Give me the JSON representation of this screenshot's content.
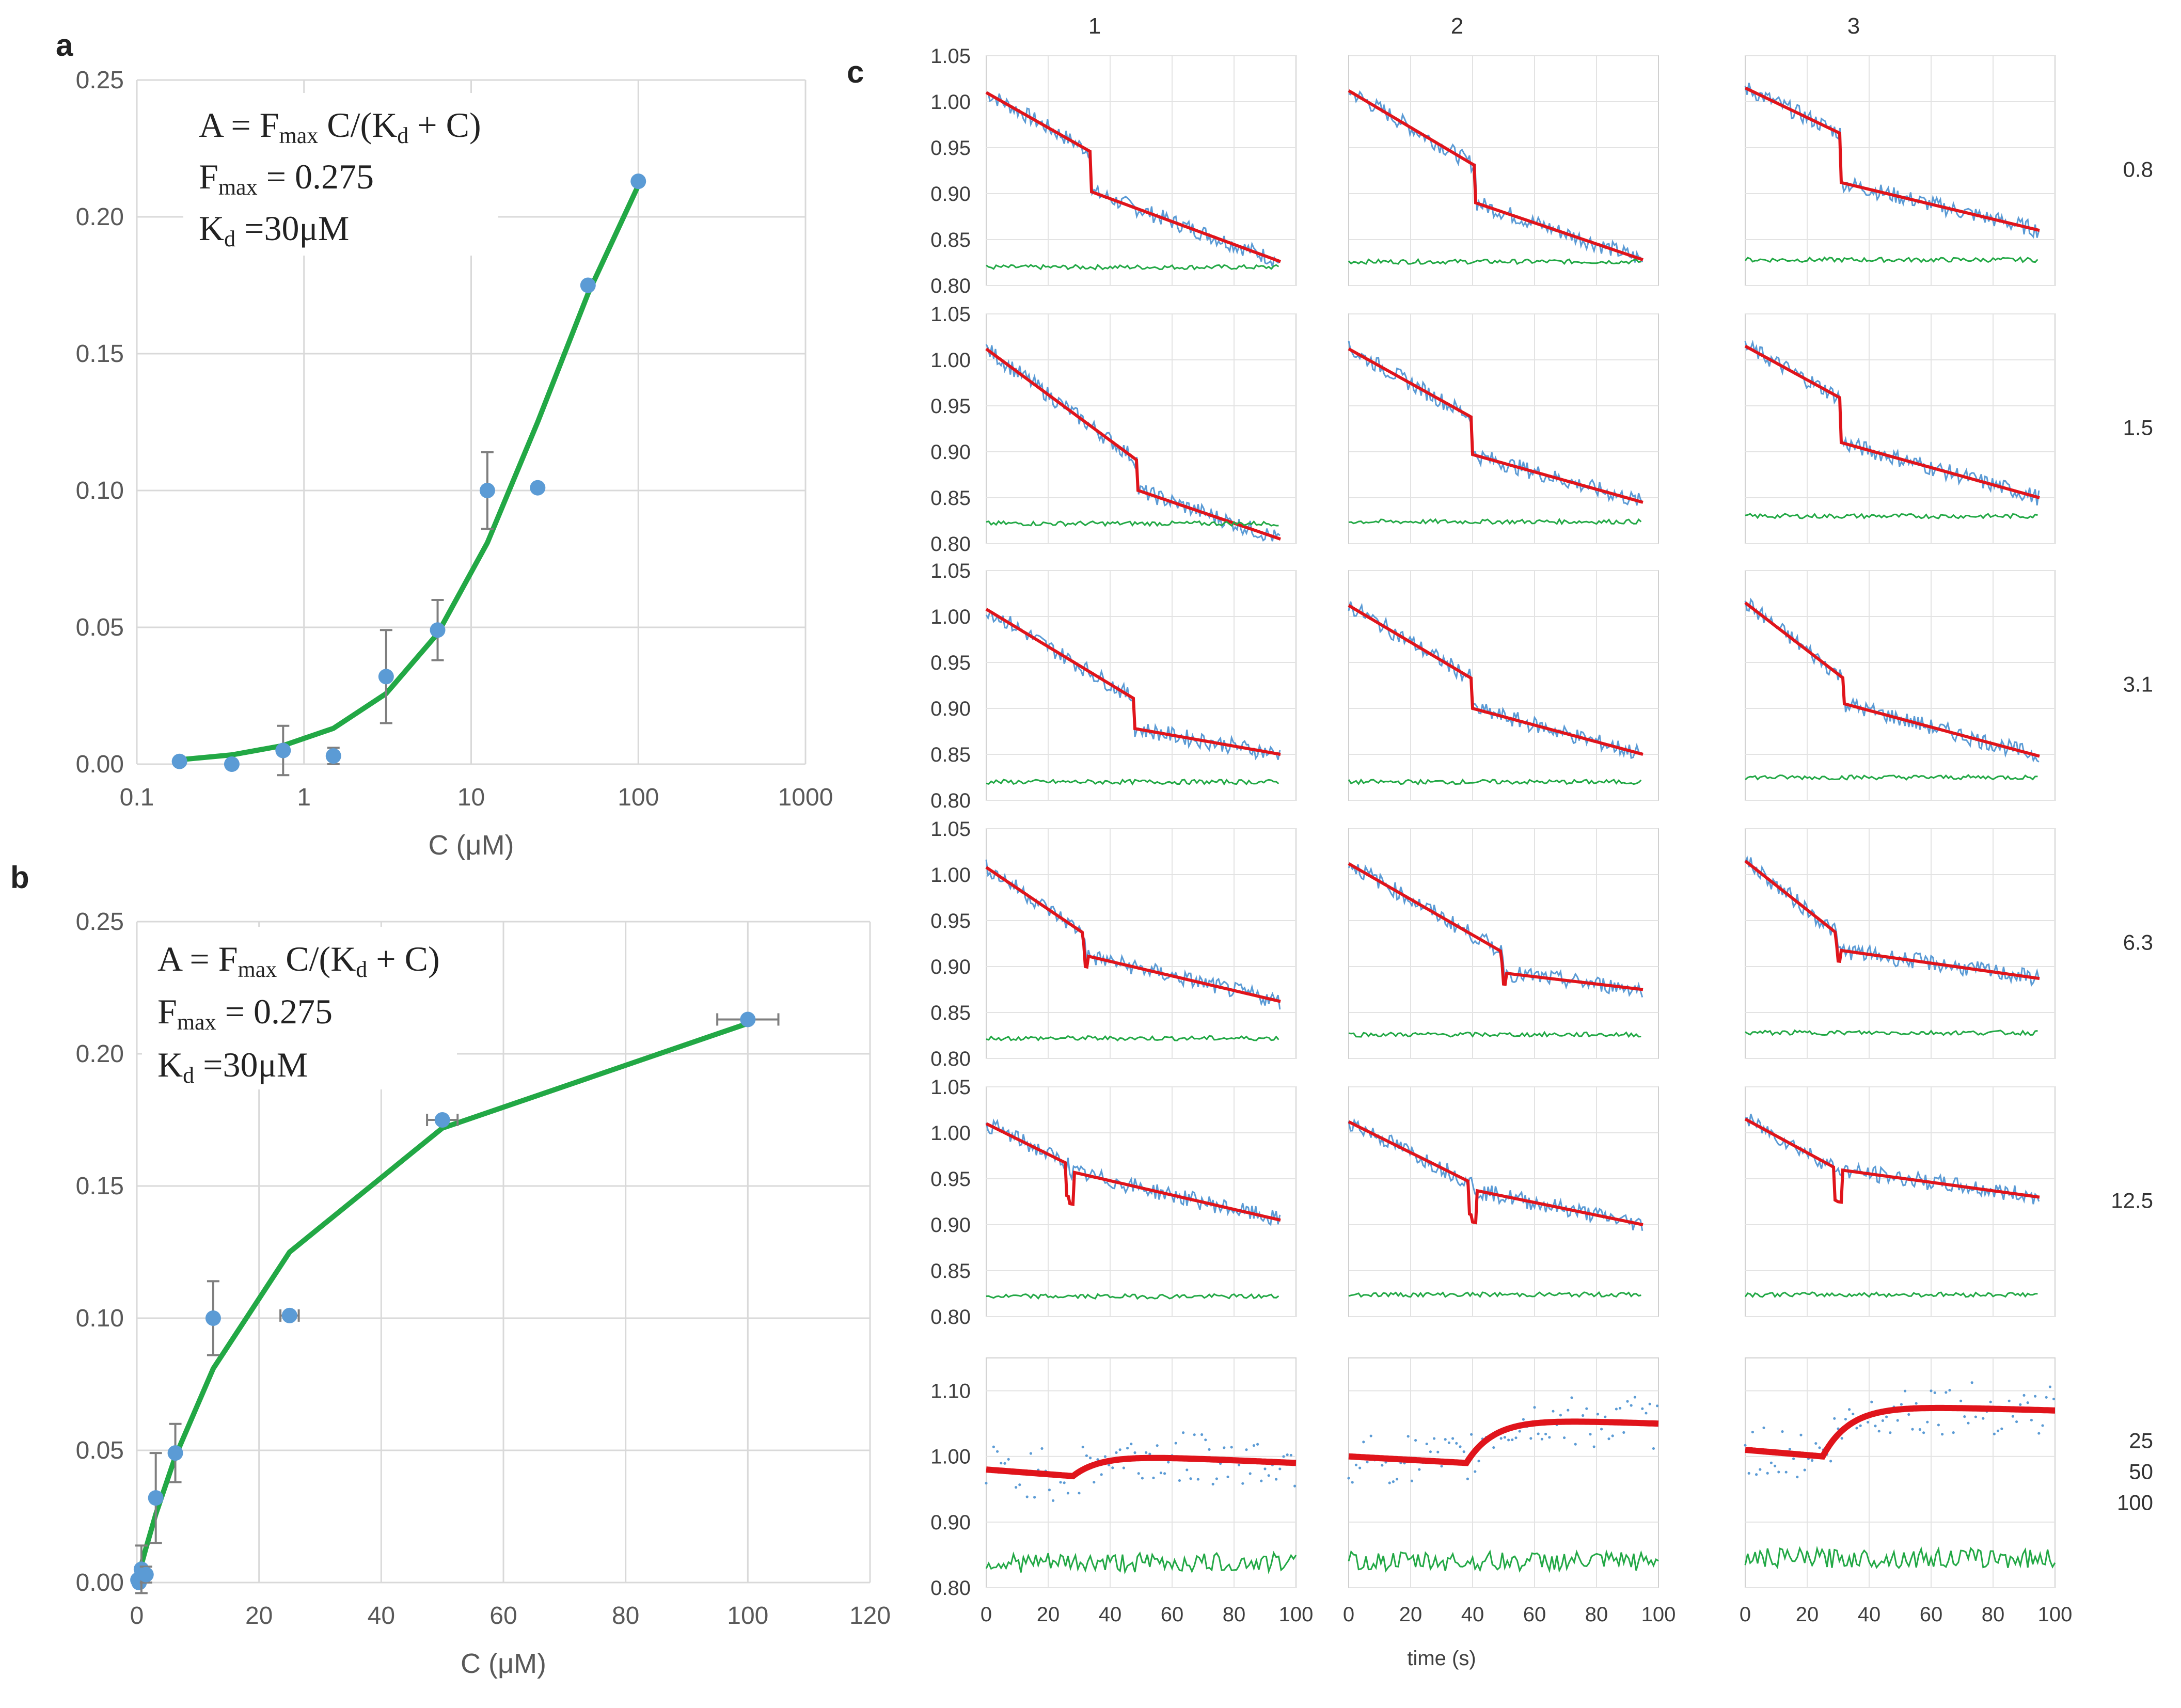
{
  "panels": {
    "a": "a",
    "b": "b",
    "c": "c"
  },
  "equation": {
    "line1_pre": "A = F",
    "line1_sub": "max",
    "line1_mid": " C/(K",
    "line1_sub2": "d",
    "line1_post": " + C)",
    "line2_pre": "F",
    "line2_sub": "max",
    "line2_post": " = 0.275",
    "line3_pre": "K",
    "line3_sub": "d",
    "line3_post": " =30μM"
  },
  "chart_data": [
    {
      "id": "a",
      "type": "scatter",
      "xscale": "log",
      "xlabel": "C (μM)",
      "ylabel": "",
      "xlim": [
        0.1,
        1000
      ],
      "ylim": [
        0,
        0.25
      ],
      "x_ticks": [
        "0.1",
        "1",
        "10",
        "100",
        "1000"
      ],
      "y_ticks": [
        "0.00",
        "0.05",
        "0.10",
        "0.15",
        "0.20",
        "0.25"
      ],
      "grid": true,
      "series": [
        {
          "name": "data",
          "color": "#5b9bd5",
          "x": [
            0.18,
            0.37,
            0.75,
            1.5,
            3.1,
            6.3,
            12.5,
            25,
            50,
            100
          ],
          "y": [
            0.001,
            0.0,
            0.005,
            0.003,
            0.032,
            0.049,
            0.1,
            0.101,
            0.175,
            0.213
          ],
          "yerr": [
            0.0,
            0.0,
            0.009,
            0.003,
            0.017,
            0.011,
            0.014,
            0.0,
            0.0,
            0.0
          ]
        },
        {
          "name": "fit",
          "color": "#22a845",
          "x": [
            0.18,
            0.37,
            0.75,
            1.5,
            3.1,
            6.3,
            12.5,
            25,
            50,
            100
          ],
          "y": [
            0.0016,
            0.0034,
            0.0068,
            0.0131,
            0.0258,
            0.0477,
            0.0809,
            0.125,
            0.1719,
            0.2115
          ]
        }
      ]
    },
    {
      "id": "b",
      "type": "scatter",
      "xscale": "linear",
      "xlabel": "C  (μM)",
      "ylabel": "",
      "xlim": [
        0,
        120
      ],
      "ylim": [
        0,
        0.25
      ],
      "x_ticks": [
        "0",
        "20",
        "40",
        "60",
        "80",
        "100",
        "120"
      ],
      "y_ticks": [
        "0.00",
        "0.05",
        "0.10",
        "0.15",
        "0.20",
        "0.25"
      ],
      "grid": true,
      "series": [
        {
          "name": "data",
          "color": "#5b9bd5",
          "x": [
            0.18,
            0.37,
            0.75,
            1.5,
            3.1,
            6.3,
            12.5,
            25,
            50,
            100
          ],
          "y": [
            0.001,
            0.0,
            0.005,
            0.003,
            0.032,
            0.049,
            0.1,
            0.101,
            0.175,
            0.213
          ],
          "yerr": [
            0.0,
            0.0,
            0.009,
            0.003,
            0.017,
            0.011,
            0.014,
            0.0,
            0.0,
            0.0
          ],
          "xerr": [
            0.0,
            0.0,
            0.0,
            0.0,
            0.0,
            0.0,
            0.0,
            1.5,
            2.5,
            5.0
          ]
        },
        {
          "name": "fit",
          "color": "#22a845",
          "x": [
            0.18,
            0.37,
            0.75,
            1.5,
            3.1,
            6.3,
            12.5,
            25,
            50,
            100
          ],
          "y": [
            0.0016,
            0.0034,
            0.0068,
            0.0131,
            0.0258,
            0.0477,
            0.0809,
            0.125,
            0.1719,
            0.2115
          ]
        }
      ]
    },
    {
      "id": "c",
      "type": "line",
      "xlabel": "time (s)",
      "x_ticks": [
        "0",
        "20",
        "40",
        "60",
        "80",
        "100"
      ],
      "xlim": [
        0,
        100
      ],
      "columns": [
        "1",
        "2",
        "3"
      ],
      "rows": [
        {
          "label": "0.8",
          "ylim": [
            0.8,
            1.05
          ],
          "y_ticks": [
            "0.80",
            "0.85",
            "0.90",
            "0.95",
            "1.00",
            "1.05"
          ],
          "traces": [
            {
              "jump_t": 34,
              "start": 1.01,
              "pre_end": 0.945,
              "post_start": 0.902,
              "end": 0.826,
              "baseline": 0.82
            },
            {
              "jump_t": 41,
              "start": 1.012,
              "pre_end": 0.93,
              "post_start": 0.89,
              "end": 0.828,
              "baseline": 0.826
            },
            {
              "jump_t": 31,
              "start": 1.015,
              "pre_end": 0.965,
              "post_start": 0.912,
              "end": 0.86,
              "baseline": 0.828
            }
          ]
        },
        {
          "label": "1.5",
          "ylim": [
            0.8,
            1.05
          ],
          "y_ticks": [
            "0.80",
            "0.85",
            "0.90",
            "0.95",
            "1.00",
            "1.05"
          ],
          "traces": [
            {
              "jump_t": 49,
              "start": 1.012,
              "pre_end": 0.89,
              "post_start": 0.858,
              "end": 0.805,
              "baseline": 0.822
            },
            {
              "jump_t": 40,
              "start": 1.012,
              "pre_end": 0.937,
              "post_start": 0.897,
              "end": 0.845,
              "baseline": 0.824
            },
            {
              "jump_t": 31,
              "start": 1.015,
              "pre_end": 0.958,
              "post_start": 0.91,
              "end": 0.85,
              "baseline": 0.83
            }
          ]
        },
        {
          "label": "3.1",
          "ylim": [
            0.8,
            1.05
          ],
          "y_ticks": [
            "0.80",
            "0.85",
            "0.90",
            "0.95",
            "1.00",
            "1.05"
          ],
          "traces": [
            {
              "jump_t": 48,
              "start": 1.008,
              "pre_end": 0.91,
              "post_start": 0.878,
              "end": 0.85,
              "baseline": 0.82
            },
            {
              "jump_t": 40,
              "start": 1.012,
              "pre_end": 0.932,
              "post_start": 0.9,
              "end": 0.85,
              "baseline": 0.82
            },
            {
              "jump_t": 32,
              "start": 1.015,
              "pre_end": 0.932,
              "post_start": 0.905,
              "end": 0.848,
              "baseline": 0.825
            }
          ]
        },
        {
          "label": "6.3",
          "ylim": [
            0.8,
            1.05
          ],
          "y_ticks": [
            "0.80",
            "0.85",
            "0.90",
            "0.95",
            "1.00",
            "1.05"
          ],
          "traces": [
            {
              "jump_t": 32,
              "start": 1.008,
              "pre_end": 0.935,
              "post_start": 0.912,
              "end": 0.862,
              "baseline": 0.822
            },
            {
              "jump_t": 50,
              "start": 1.012,
              "pre_end": 0.915,
              "post_start": 0.893,
              "end": 0.875,
              "baseline": 0.826
            },
            {
              "jump_t": 30,
              "start": 1.015,
              "pre_end": 0.935,
              "post_start": 0.918,
              "end": 0.887,
              "baseline": 0.828
            }
          ]
        },
        {
          "label": "12.5",
          "ylim": [
            0.8,
            1.05
          ],
          "y_ticks": [
            "0.80",
            "0.85",
            "0.90",
            "0.95",
            "1.00",
            "1.05"
          ],
          "traces": [
            {
              "jump_t": 27,
              "start": 1.01,
              "pre_end": 0.965,
              "post_start": 0.958,
              "end": 0.905,
              "baseline": 0.822
            },
            {
              "jump_t": 40,
              "start": 1.012,
              "pre_end": 0.945,
              "post_start": 0.938,
              "end": 0.9,
              "baseline": 0.824
            },
            {
              "jump_t": 30,
              "start": 1.015,
              "pre_end": 0.96,
              "post_start": 0.96,
              "end": 0.93,
              "baseline": 0.824
            }
          ]
        },
        {
          "label": "25\n50\n100",
          "ylim": [
            0.8,
            1.15
          ],
          "y_ticks": [
            "0.80",
            "0.90",
            "1.00",
            "1.10"
          ],
          "traces": [
            {
              "jump_t": 28,
              "start": 0.98,
              "pre_end": 0.97,
              "post_start": 0.97,
              "end": 0.99,
              "peak": 1.005,
              "baseline": 0.838
            },
            {
              "jump_t": 38,
              "start": 1.0,
              "pre_end": 0.99,
              "post_start": 0.99,
              "end": 1.05,
              "peak": 1.06,
              "baseline": 0.84
            },
            {
              "jump_t": 25,
              "start": 1.01,
              "pre_end": 1.0,
              "post_start": 1.0,
              "end": 1.07,
              "peak": 1.08,
              "baseline": 0.845
            }
          ]
        }
      ]
    }
  ],
  "colors": {
    "data_blue": "#5b9bd5",
    "fit_green": "#22a845",
    "fit_red": "#e0141b",
    "trace_blue": "#5b9bd5",
    "baseline_green": "#22a845",
    "grid": "#d9d9d9"
  }
}
